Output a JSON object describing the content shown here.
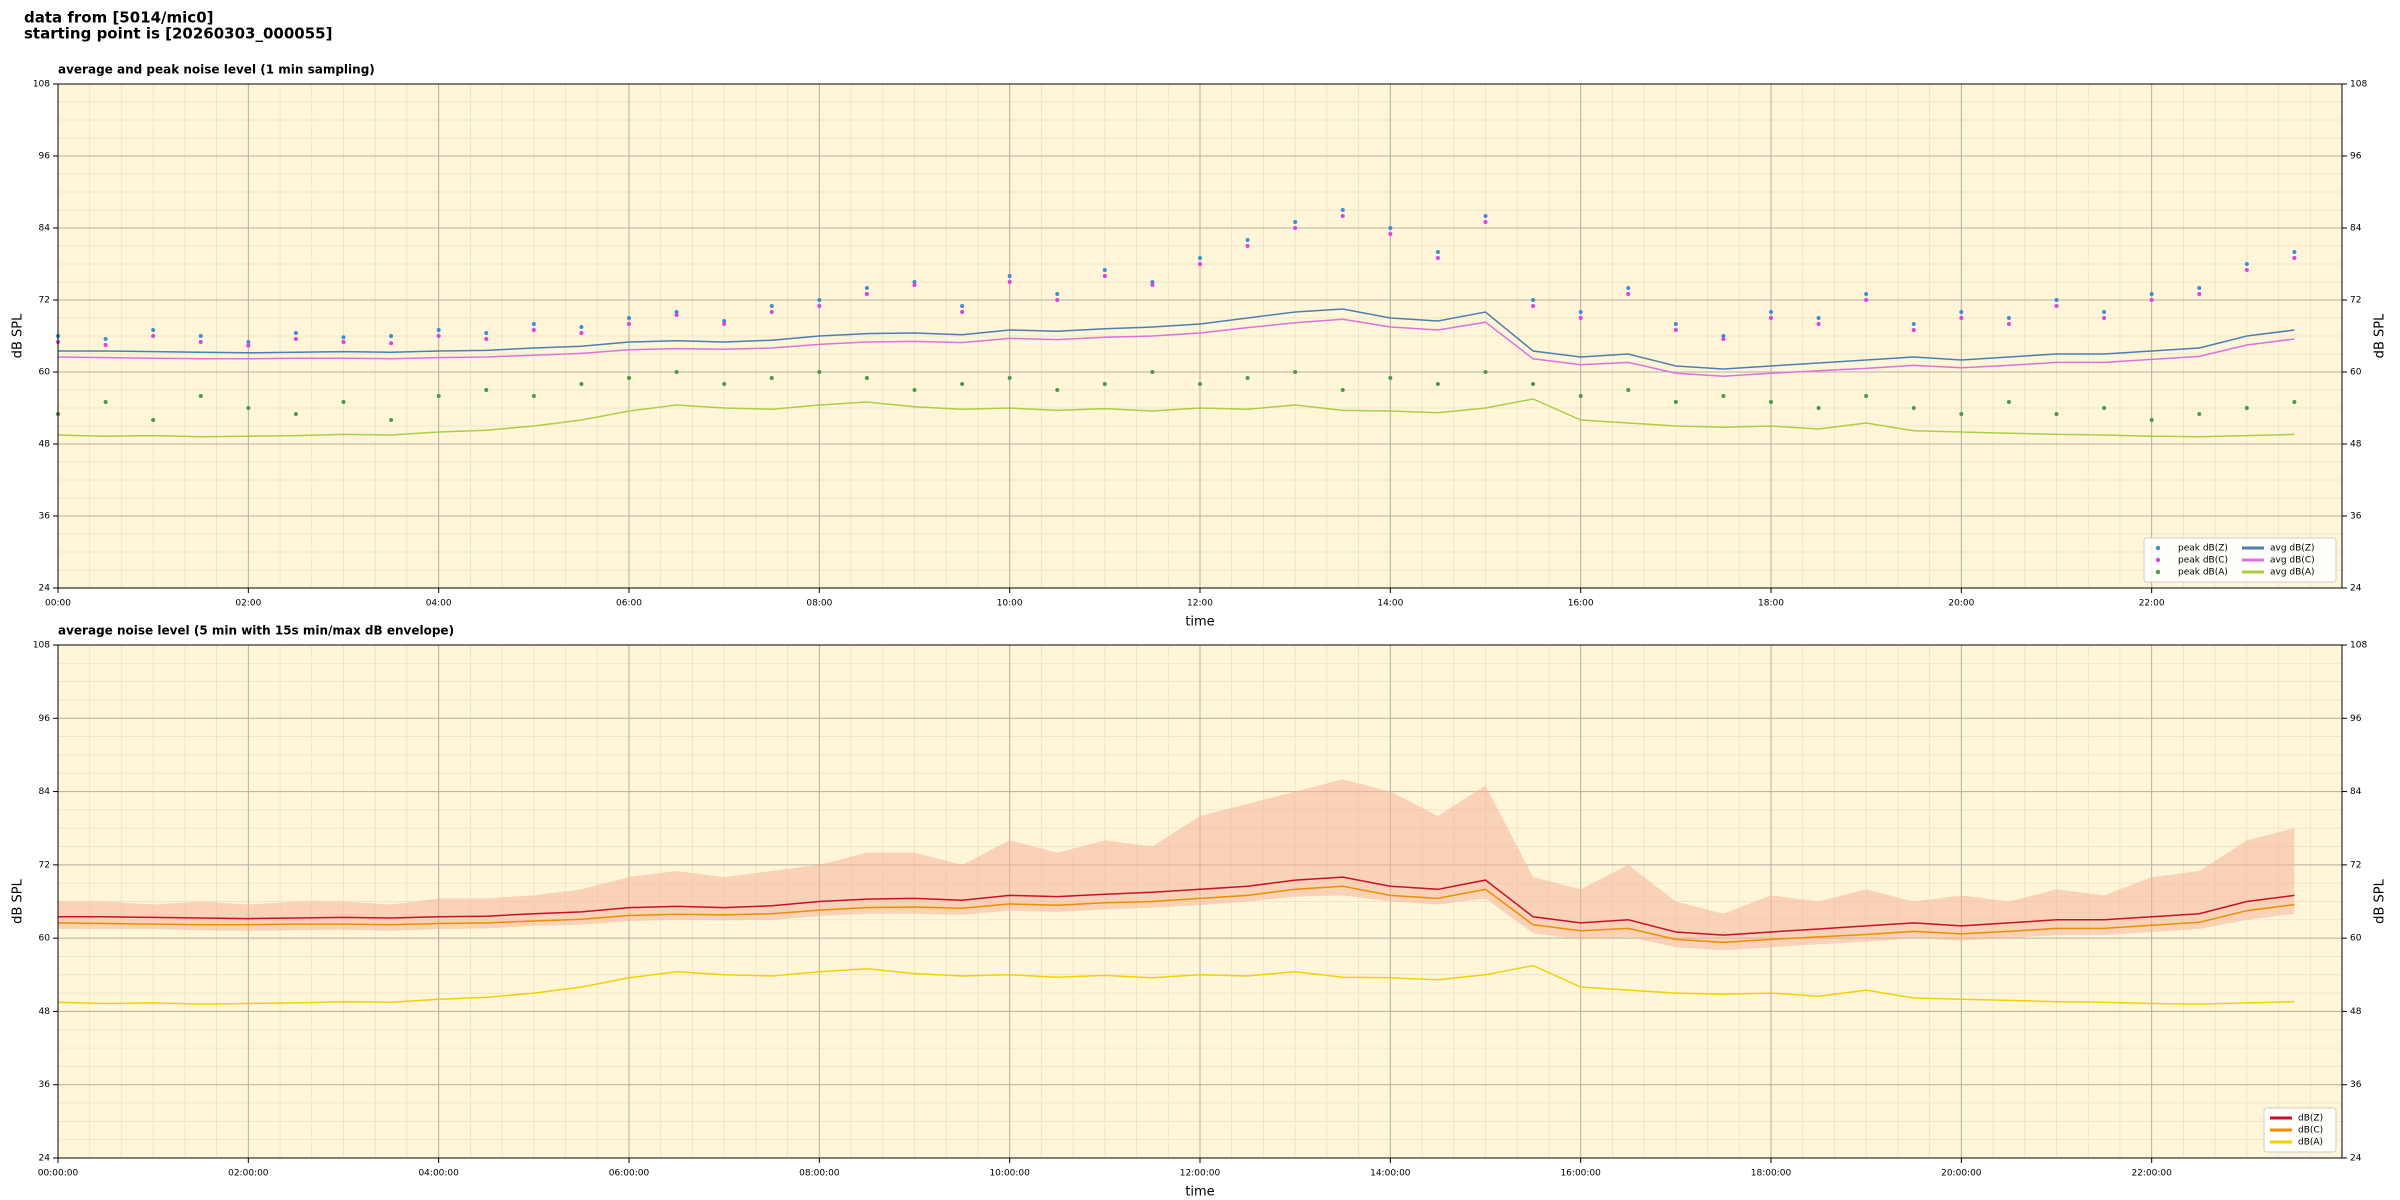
{
  "title_lines": [
    "data from [5014/mic0]",
    "starting point is [20260303_000055]"
  ],
  "chart_data": [
    {
      "type": "line",
      "title": "average and peak noise level (1 min sampling)",
      "xlabel": "time",
      "ylabel": "dB SPL",
      "xlim": [
        0,
        24
      ],
      "ylim": [
        24,
        108
      ],
      "yticks": [
        24,
        36,
        48,
        60,
        72,
        84,
        96,
        108
      ],
      "xticks": [
        {
          "value": 0,
          "label": "00:00"
        },
        {
          "value": 2,
          "label": "02:00"
        },
        {
          "value": 4,
          "label": "04:00"
        },
        {
          "value": 6,
          "label": "06:00"
        },
        {
          "value": 8,
          "label": "08:00"
        },
        {
          "value": 10,
          "label": "10:00"
        },
        {
          "value": 12,
          "label": "12:00"
        },
        {
          "value": 14,
          "label": "14:00"
        },
        {
          "value": 16,
          "label": "16:00"
        },
        {
          "value": 18,
          "label": "18:00"
        },
        {
          "value": 20,
          "label": "20:00"
        },
        {
          "value": 22,
          "label": "22:00"
        }
      ],
      "grid": true,
      "legend": "lower right",
      "legend_columns": 2,
      "background": "#fff6da",
      "x": [
        0,
        0.5,
        1,
        1.5,
        2,
        2.5,
        3,
        3.5,
        4,
        4.5,
        5,
        5.5,
        6,
        6.5,
        7,
        7.5,
        8,
        8.5,
        9,
        9.5,
        10,
        10.5,
        11,
        11.5,
        12,
        12.5,
        13,
        13.5,
        14,
        14.5,
        15,
        15.5,
        16,
        16.5,
        17,
        17.5,
        18,
        18.5,
        19,
        19.5,
        20,
        20.5,
        21,
        21.5,
        22,
        22.5,
        23,
        23.5
      ],
      "series": [
        {
          "name": "peak dB(Z)",
          "marker": "dot",
          "color": "#3a8fd8",
          "values": [
            66,
            65.5,
            67,
            66,
            65,
            66.5,
            65.8,
            66,
            67,
            66.5,
            68,
            67.5,
            69,
            70,
            68.5,
            71,
            72,
            74,
            75,
            71,
            76,
            73,
            77,
            75,
            79,
            82,
            85,
            87,
            84,
            80,
            86,
            72,
            70,
            74,
            68,
            66,
            70,
            69,
            73,
            68,
            70,
            69,
            72,
            70,
            73,
            74,
            78,
            80
          ]
        },
        {
          "name": "peak dB(C)",
          "marker": "dot",
          "color": "#e040e0",
          "values": [
            65,
            64.5,
            66,
            65,
            64.4,
            65.5,
            65,
            64.8,
            66,
            65.5,
            67,
            66.5,
            68,
            69.5,
            68,
            70,
            71,
            73,
            74.5,
            70,
            75,
            72,
            76,
            74.5,
            78,
            81,
            84,
            86,
            83,
            79,
            85,
            71,
            69,
            73,
            67,
            65.5,
            69,
            68,
            72,
            67,
            69,
            68,
            71,
            69,
            72,
            73,
            77,
            79
          ]
        },
        {
          "name": "peak dB(A)",
          "marker": "dot",
          "color": "#4a9a4a",
          "values": [
            53,
            55,
            52,
            56,
            54,
            53,
            55,
            52,
            56,
            57,
            56,
            58,
            59,
            60,
            58,
            59,
            60,
            59,
            57,
            58,
            59,
            57,
            58,
            60,
            58,
            59,
            60,
            57,
            59,
            58,
            60,
            58,
            56,
            57,
            55,
            56,
            55,
            54,
            56,
            54,
            53,
            55,
            53,
            54,
            52,
            53,
            54,
            55
          ]
        },
        {
          "name": "avg dB(Z)",
          "marker": "line",
          "color": "#4a7fb0",
          "values": [
            63.5,
            63.5,
            63.4,
            63.3,
            63.2,
            63.3,
            63.4,
            63.3,
            63.5,
            63.6,
            64,
            64.3,
            65,
            65.2,
            65,
            65.3,
            66,
            66.4,
            66.5,
            66.2,
            67,
            66.8,
            67.2,
            67.5,
            68,
            69,
            70,
            70.5,
            69,
            68.5,
            70,
            63.5,
            62.5,
            63,
            61,
            60.5,
            61,
            61.5,
            62,
            62.5,
            62,
            62.5,
            63,
            63,
            63.5,
            64,
            66,
            67
          ]
        },
        {
          "name": "avg dB(C)",
          "marker": "line",
          "color": "#e070e0",
          "values": [
            62.5,
            62.4,
            62.3,
            62.2,
            62.2,
            62.3,
            62.3,
            62.2,
            62.4,
            62.5,
            62.8,
            63.1,
            63.7,
            63.9,
            63.8,
            64,
            64.6,
            65,
            65.1,
            64.9,
            65.6,
            65.4,
            65.8,
            66,
            66.5,
            67.4,
            68.2,
            68.8,
            67.5,
            67,
            68.3,
            62.2,
            61.2,
            61.6,
            59.8,
            59.3,
            59.8,
            60.2,
            60.6,
            61.1,
            60.7,
            61.1,
            61.6,
            61.6,
            62.1,
            62.6,
            64.5,
            65.5
          ]
        },
        {
          "name": "avg dB(A)",
          "marker": "line",
          "color": "#a8d040",
          "values": [
            49.5,
            49.3,
            49.4,
            49.2,
            49.3,
            49.4,
            49.6,
            49.5,
            50,
            50.3,
            51,
            52,
            53.5,
            54.5,
            54,
            53.8,
            54.5,
            55,
            54.2,
            53.8,
            54,
            53.6,
            53.9,
            53.5,
            54,
            53.8,
            54.5,
            53.6,
            53.5,
            53.2,
            54,
            55.5,
            52,
            51.5,
            51,
            50.8,
            51,
            50.5,
            51.5,
            50.2,
            50,
            49.8,
            49.6,
            49.5,
            49.3,
            49.2,
            49.4,
            49.6
          ]
        }
      ]
    },
    {
      "type": "line",
      "title": "average noise level (5 min with 15s min/max dB envelope)",
      "xlabel": "time",
      "ylabel": "dB SPL",
      "xlim": [
        0,
        24
      ],
      "ylim": [
        24,
        108
      ],
      "yticks": [
        24,
        36,
        48,
        60,
        72,
        84,
        96,
        108
      ],
      "xticks": [
        {
          "value": 0,
          "label": "00:00:00"
        },
        {
          "value": 2,
          "label": "02:00:00"
        },
        {
          "value": 4,
          "label": "04:00:00"
        },
        {
          "value": 6,
          "label": "06:00:00"
        },
        {
          "value": 8,
          "label": "08:00:00"
        },
        {
          "value": 10,
          "label": "10:00:00"
        },
        {
          "value": 12,
          "label": "12:00:00"
        },
        {
          "value": 14,
          "label": "14:00:00"
        },
        {
          "value": 16,
          "label": "16:00:00"
        },
        {
          "value": 18,
          "label": "18:00:00"
        },
        {
          "value": 20,
          "label": "20:00:00"
        },
        {
          "value": 22,
          "label": "22:00:00"
        }
      ],
      "grid": true,
      "legend": "lower right",
      "legend_columns": 1,
      "background": "#fff6da",
      "x": [
        0,
        0.5,
        1,
        1.5,
        2,
        2.5,
        3,
        3.5,
        4,
        4.5,
        5,
        5.5,
        6,
        6.5,
        7,
        7.5,
        8,
        8.5,
        9,
        9.5,
        10,
        10.5,
        11,
        11.5,
        12,
        12.5,
        13,
        13.5,
        14,
        14.5,
        15,
        15.5,
        16,
        16.5,
        17,
        17.5,
        18,
        18.5,
        19,
        19.5,
        20,
        20.5,
        21,
        21.5,
        22,
        22.5,
        23,
        23.5
      ],
      "envelope": {
        "color": "#f4b49a",
        "upper": [
          66,
          66,
          65.5,
          66,
          65.5,
          66,
          66,
          65.5,
          66.5,
          66.5,
          67,
          68,
          70,
          71,
          70,
          71,
          72,
          74,
          74,
          72,
          76,
          74,
          76,
          75,
          80,
          82,
          84,
          86,
          84,
          80,
          85,
          70,
          68,
          72,
          66,
          64,
          67,
          66,
          68,
          66,
          67,
          66,
          68,
          67,
          70,
          71,
          76,
          78
        ],
        "lower": [
          61.5,
          61.5,
          61.5,
          61.3,
          61.2,
          61.3,
          61.4,
          61.2,
          61.5,
          61.6,
          62,
          62.2,
          62.8,
          63,
          62.9,
          63,
          63.6,
          64,
          64,
          63.8,
          64.5,
          64.3,
          64.7,
          65,
          65.4,
          66,
          66.8,
          67,
          66,
          65.5,
          66.5,
          60.8,
          59.8,
          60.2,
          58.5,
          58,
          58.5,
          59,
          59.4,
          60,
          59.6,
          60,
          60.5,
          60.5,
          61,
          61.5,
          63,
          64
        ]
      },
      "series": [
        {
          "name": "dB(Z)",
          "marker": "line",
          "color": "#c8102e",
          "values": [
            63.5,
            63.5,
            63.4,
            63.3,
            63.2,
            63.3,
            63.4,
            63.3,
            63.5,
            63.6,
            64,
            64.3,
            65,
            65.2,
            65,
            65.3,
            66,
            66.4,
            66.5,
            66.2,
            67,
            66.8,
            67.2,
            67.5,
            68,
            68.5,
            69.5,
            70,
            68.5,
            68,
            69.5,
            63.5,
            62.5,
            63,
            61,
            60.5,
            61,
            61.5,
            62,
            62.5,
            62,
            62.5,
            63,
            63,
            63.5,
            64,
            66,
            67
          ]
        },
        {
          "name": "dB(C)",
          "marker": "line",
          "color": "#f28c00",
          "values": [
            62.5,
            62.4,
            62.3,
            62.2,
            62.2,
            62.3,
            62.3,
            62.2,
            62.4,
            62.5,
            62.8,
            63.1,
            63.7,
            63.9,
            63.8,
            64,
            64.6,
            65,
            65.1,
            64.9,
            65.6,
            65.4,
            65.8,
            66,
            66.5,
            67,
            68,
            68.5,
            67,
            66.5,
            68,
            62.2,
            61.2,
            61.6,
            59.8,
            59.3,
            59.8,
            60.2,
            60.6,
            61.1,
            60.7,
            61.1,
            61.6,
            61.6,
            62.1,
            62.6,
            64.5,
            65.5
          ]
        },
        {
          "name": "dB(A)",
          "marker": "line",
          "color": "#f5d000",
          "values": [
            49.5,
            49.3,
            49.4,
            49.2,
            49.3,
            49.4,
            49.6,
            49.5,
            50,
            50.3,
            51,
            52,
            53.5,
            54.5,
            54,
            53.8,
            54.5,
            55,
            54.2,
            53.8,
            54,
            53.6,
            53.9,
            53.5,
            54,
            53.8,
            54.5,
            53.6,
            53.5,
            53.2,
            54,
            55.5,
            52,
            51.5,
            51,
            50.8,
            51,
            50.5,
            51.5,
            50.2,
            50,
            49.8,
            49.6,
            49.5,
            49.3,
            49.2,
            49.4,
            49.6
          ]
        }
      ]
    }
  ]
}
